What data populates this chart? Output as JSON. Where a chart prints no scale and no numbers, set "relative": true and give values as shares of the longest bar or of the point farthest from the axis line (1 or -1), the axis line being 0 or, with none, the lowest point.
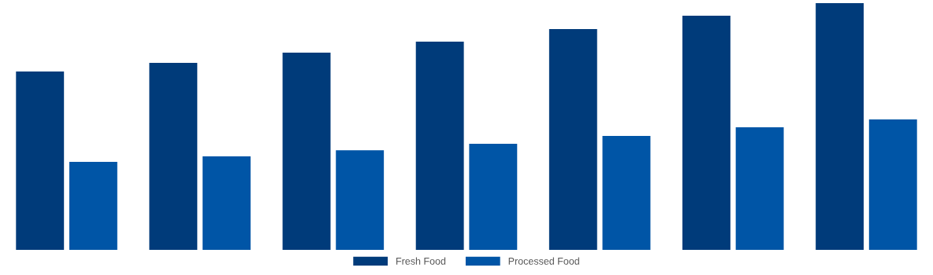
{
  "chart_data": {
    "type": "bar",
    "relative": true,
    "categories": [
      null,
      null,
      null,
      null,
      null,
      null,
      null
    ],
    "series": [
      {
        "name": "Fresh Food",
        "color": "#003b7a",
        "values": [
          0.723,
          0.758,
          0.799,
          0.844,
          0.895,
          0.949,
          1
        ]
      },
      {
        "name": "Processed Food",
        "color": "#0055a6",
        "values": [
          0.357,
          0.379,
          0.404,
          0.43,
          0.462,
          0.497,
          0.529
        ]
      }
    ],
    "legend": "bottom",
    "grid": false
  }
}
